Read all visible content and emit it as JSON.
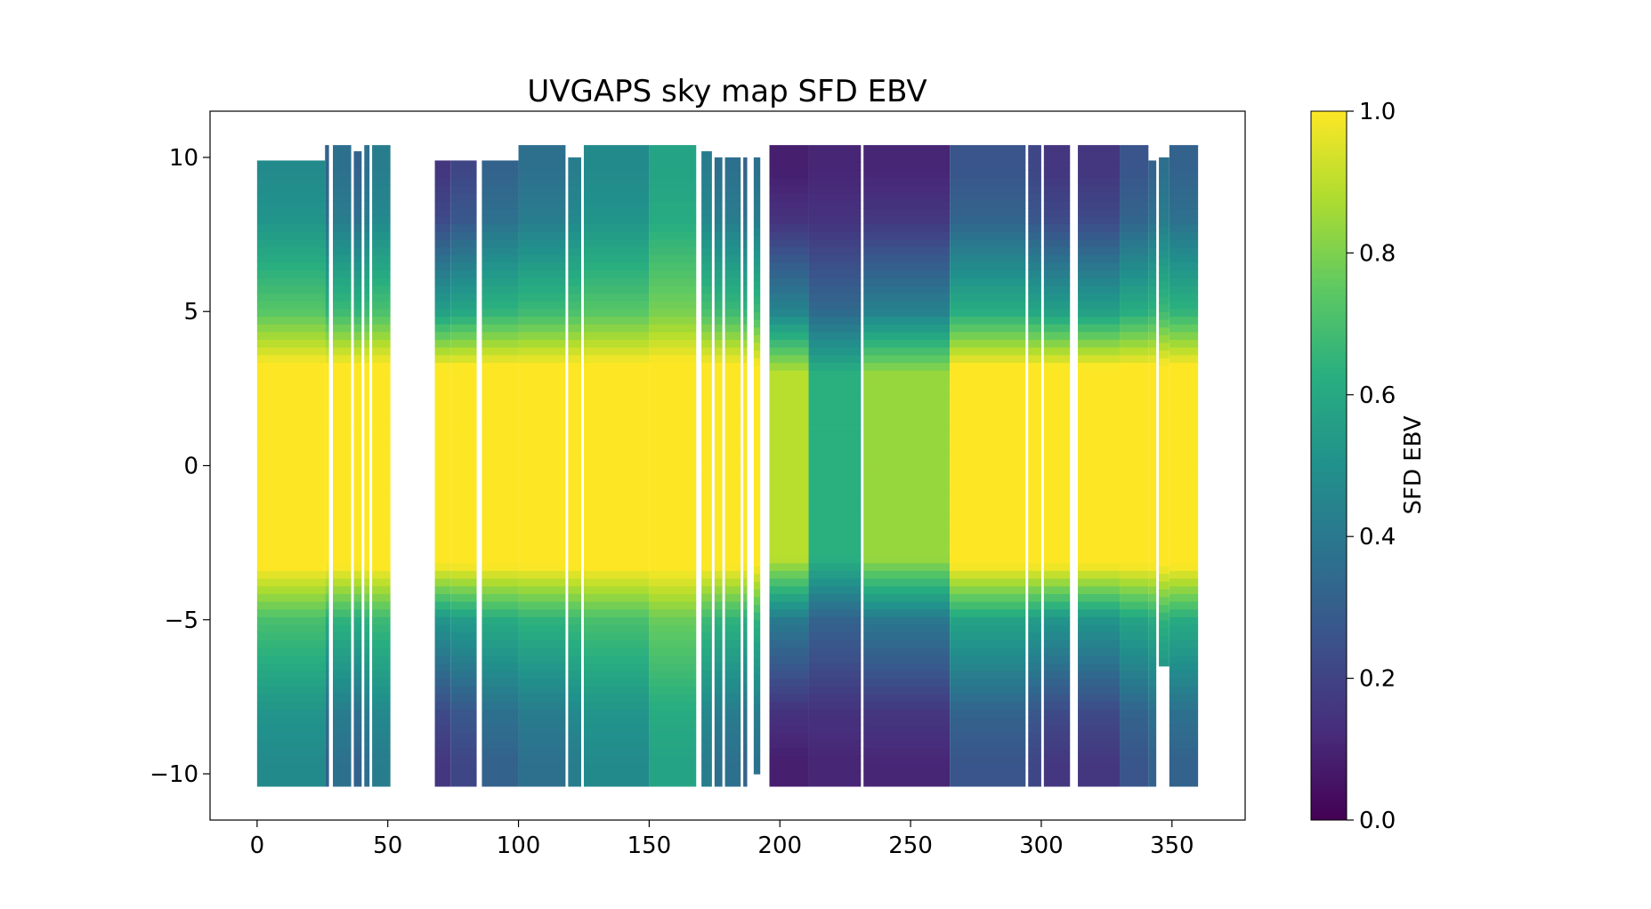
{
  "chart_data": {
    "type": "heatmap",
    "title": "UVGAPS sky map SFD EBV",
    "xlabel": "",
    "ylabel": "",
    "xlim": [
      -18,
      378
    ],
    "ylim": [
      -11.5,
      11.5
    ],
    "x_ticks": [
      0,
      50,
      100,
      150,
      200,
      250,
      300,
      350
    ],
    "x_tick_labels": [
      "0",
      "50",
      "100",
      "150",
      "200",
      "250",
      "300",
      "350"
    ],
    "y_ticks": [
      10,
      5,
      0,
      -5,
      -10
    ],
    "y_tick_labels": [
      "10",
      "5",
      "0",
      "−5",
      "−10"
    ],
    "colorbar": {
      "label": "SFD EBV",
      "colormap": "viridis",
      "range": [
        0.0,
        1.0
      ],
      "ticks": [
        1.0,
        0.8,
        0.6,
        0.4,
        0.2,
        0.0
      ],
      "tick_labels": [
        "1.0",
        "0.8",
        "0.6",
        "0.4",
        "0.2",
        "0.0"
      ]
    },
    "lat_profile": [
      {
        "b": -10.4,
        "ebv_scale": 0.28
      },
      {
        "b": -8,
        "ebv_scale": 0.34
      },
      {
        "b": -5,
        "ebv_scale": 0.52
      },
      {
        "b": -3,
        "ebv_scale": 0.85
      },
      {
        "b": 0,
        "ebv_scale": 1.0
      },
      {
        "b": 3,
        "ebv_scale": 0.85
      },
      {
        "b": 5,
        "ebv_scale": 0.55
      },
      {
        "b": 8,
        "ebv_scale": 0.34
      },
      {
        "b": 10.4,
        "ebv_scale": 0.28
      }
    ],
    "coverage": [
      {
        "l0": 0,
        "l1": 26,
        "b0": -10.4,
        "b1": 9.9,
        "ebv_plane": 1.0,
        "ebv_edge": 0.45
      },
      {
        "l0": 26,
        "l1": 27.5,
        "b0": -10.4,
        "b1": 10.4,
        "ebv_plane": 1.0,
        "ebv_edge": 0.3
      },
      {
        "l0": 29,
        "l1": 36,
        "b0": -10.4,
        "b1": 10.4,
        "ebv_plane": 1.0,
        "ebv_edge": 0.35
      },
      {
        "l0": 37,
        "l1": 40,
        "b0": -10.4,
        "b1": 10.2,
        "ebv_plane": 1.0,
        "ebv_edge": 0.3
      },
      {
        "l0": 41,
        "l1": 43,
        "b0": -10.4,
        "b1": 10.4,
        "ebv_plane": 1.0,
        "ebv_edge": 0.35
      },
      {
        "l0": 44,
        "l1": 51,
        "b0": -10.4,
        "b1": 10.4,
        "ebv_plane": 1.0,
        "ebv_edge": 0.4
      },
      {
        "l0": 68,
        "l1": 74,
        "b0": -10.4,
        "b1": 9.9,
        "ebv_plane": 1.0,
        "ebv_edge": 0.15
      },
      {
        "l0": 74,
        "l1": 84,
        "b0": -10.4,
        "b1": 9.9,
        "ebv_plane": 1.0,
        "ebv_edge": 0.2
      },
      {
        "l0": 86,
        "l1": 100,
        "b0": -10.4,
        "b1": 9.9,
        "ebv_plane": 1.0,
        "ebv_edge": 0.3
      },
      {
        "l0": 100,
        "l1": 118,
        "b0": -10.4,
        "b1": 10.4,
        "ebv_plane": 1.0,
        "ebv_edge": 0.35
      },
      {
        "l0": 119,
        "l1": 124,
        "b0": -10.4,
        "b1": 10.0,
        "ebv_plane": 1.0,
        "ebv_edge": 0.4
      },
      {
        "l0": 125,
        "l1": 150,
        "b0": -10.4,
        "b1": 10.4,
        "ebv_plane": 1.0,
        "ebv_edge": 0.45
      },
      {
        "l0": 150,
        "l1": 168,
        "b0": -10.4,
        "b1": 10.4,
        "ebv_plane": 1.0,
        "ebv_edge": 0.55
      },
      {
        "l0": 170,
        "l1": 174,
        "b0": -10.4,
        "b1": 10.2,
        "ebv_plane": 1.0,
        "ebv_edge": 0.4
      },
      {
        "l0": 175,
        "l1": 178,
        "b0": -10.4,
        "b1": 10.0,
        "ebv_plane": 1.0,
        "ebv_edge": 0.35
      },
      {
        "l0": 179,
        "l1": 185,
        "b0": -10.4,
        "b1": 10.0,
        "ebv_plane": 1.0,
        "ebv_edge": 0.35
      },
      {
        "l0": 186,
        "l1": 187.5,
        "b0": -10.4,
        "b1": 10.0,
        "ebv_plane": 1.0,
        "ebv_edge": 0.3
      },
      {
        "l0": 190,
        "l1": 192.5,
        "b0": -10.0,
        "b1": 10.0,
        "ebv_plane": 1.0,
        "ebv_edge": 0.35
      },
      {
        "l0": 196,
        "l1": 211,
        "b0": -10.4,
        "b1": 10.4,
        "ebv_plane": 0.85,
        "ebv_edge": 0.08
      },
      {
        "l0": 211,
        "l1": 231,
        "b0": -10.4,
        "b1": 10.4,
        "ebv_plane": 0.6,
        "ebv_edge": 0.1
      },
      {
        "l0": 232,
        "l1": 265,
        "b0": -10.4,
        "b1": 10.4,
        "ebv_plane": 0.8,
        "ebv_edge": 0.1
      },
      {
        "l0": 265,
        "l1": 294,
        "b0": -10.4,
        "b1": 10.4,
        "ebv_plane": 1.0,
        "ebv_edge": 0.25
      },
      {
        "l0": 295,
        "l1": 300,
        "b0": -10.4,
        "b1": 10.4,
        "ebv_plane": 1.0,
        "ebv_edge": 0.2
      },
      {
        "l0": 301,
        "l1": 311,
        "b0": -10.4,
        "b1": 10.4,
        "ebv_plane": 1.0,
        "ebv_edge": 0.15
      },
      {
        "l0": 314,
        "l1": 330,
        "b0": -10.4,
        "b1": 10.4,
        "ebv_plane": 1.0,
        "ebv_edge": 0.15
      },
      {
        "l0": 330,
        "l1": 341,
        "b0": -10.4,
        "b1": 10.4,
        "ebv_plane": 1.0,
        "ebv_edge": 0.25
      },
      {
        "l0": 341,
        "l1": 344,
        "b0": -10.4,
        "b1": 9.9,
        "ebv_plane": 1.0,
        "ebv_edge": 0.3
      },
      {
        "l0": 345,
        "l1": 349,
        "b0": -6.5,
        "b1": 10.0,
        "ebv_plane": 1.0,
        "ebv_edge": 0.35
      },
      {
        "l0": 349,
        "l1": 360,
        "b0": -10.4,
        "b1": 10.4,
        "ebv_plane": 1.0,
        "ebv_edge": 0.3
      }
    ]
  }
}
